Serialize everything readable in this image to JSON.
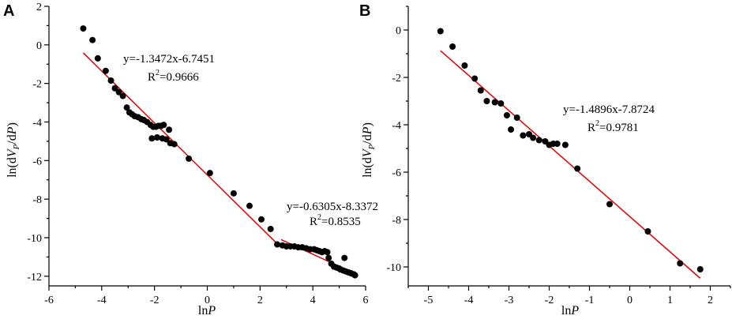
{
  "chart_data": [
    {
      "id": "A",
      "type": "scatter",
      "panel_label": "A",
      "xlabel_prefix": "ln",
      "xlabel_italic": "P",
      "ylabel": "ln(dV_P/dP)",
      "xlim": [
        -6,
        6
      ],
      "ylim": [
        -12.5,
        2
      ],
      "xticks": [
        -6,
        -4,
        -2,
        0,
        2,
        4,
        6
      ],
      "yticks": [
        2,
        0,
        -2,
        -4,
        -6,
        -8,
        -10,
        -12
      ],
      "points": [
        [
          -4.7,
          0.85
        ],
        [
          -4.35,
          0.25
        ],
        [
          -4.15,
          -0.7
        ],
        [
          -3.85,
          -1.35
        ],
        [
          -3.65,
          -1.85
        ],
        [
          -3.5,
          -2.25
        ],
        [
          -3.35,
          -2.45
        ],
        [
          -3.2,
          -2.65
        ],
        [
          -3.05,
          -3.25
        ],
        [
          -2.95,
          -3.5
        ],
        [
          -2.85,
          -3.6
        ],
        [
          -2.75,
          -3.7
        ],
        [
          -2.62,
          -3.75
        ],
        [
          -2.5,
          -3.85
        ],
        [
          -2.4,
          -3.9
        ],
        [
          -2.28,
          -4.0
        ],
        [
          -2.15,
          -4.15
        ],
        [
          -2.05,
          -4.25
        ],
        [
          -1.95,
          -4.25
        ],
        [
          -1.85,
          -4.2
        ],
        [
          -1.75,
          -4.2
        ],
        [
          -1.65,
          -4.15
        ],
        [
          -2.1,
          -4.85
        ],
        [
          -1.9,
          -4.8
        ],
        [
          -1.7,
          -4.85
        ],
        [
          -1.55,
          -4.9
        ],
        [
          -1.45,
          -4.4
        ],
        [
          -1.4,
          -5.1
        ],
        [
          -1.25,
          -5.15
        ],
        [
          -0.7,
          -5.9
        ],
        [
          0.1,
          -6.65
        ],
        [
          1.0,
          -7.7
        ],
        [
          1.6,
          -8.35
        ],
        [
          2.05,
          -9.05
        ],
        [
          2.4,
          -9.55
        ],
        [
          2.65,
          -10.35
        ],
        [
          2.85,
          -10.4
        ],
        [
          3.0,
          -10.45
        ],
        [
          3.15,
          -10.45
        ],
        [
          3.3,
          -10.45
        ],
        [
          3.45,
          -10.5
        ],
        [
          3.6,
          -10.5
        ],
        [
          3.75,
          -10.55
        ],
        [
          3.9,
          -10.6
        ],
        [
          4.05,
          -10.6
        ],
        [
          4.15,
          -10.65
        ],
        [
          4.25,
          -10.7
        ],
        [
          4.35,
          -10.75
        ],
        [
          4.45,
          -10.7
        ],
        [
          4.55,
          -10.75
        ],
        [
          4.6,
          -11.05
        ],
        [
          4.7,
          -11.35
        ],
        [
          4.8,
          -11.5
        ],
        [
          4.9,
          -11.55
        ],
        [
          5.0,
          -11.6
        ],
        [
          5.05,
          -11.65
        ],
        [
          5.15,
          -11.7
        ],
        [
          5.2,
          -11.05
        ],
        [
          5.25,
          -11.75
        ],
        [
          5.35,
          -11.8
        ],
        [
          5.45,
          -11.85
        ],
        [
          5.55,
          -11.9
        ],
        [
          5.6,
          -11.95
        ]
      ],
      "fits": [
        {
          "slope": -1.3472,
          "intercept": -6.7451,
          "x_range": [
            -4.7,
            2.8
          ],
          "equation": "y=-1.3472x-6.7451",
          "r2_prefix": "R",
          "r2_sup": "2",
          "r2_value": "=0.9666"
        },
        {
          "slope": -0.6305,
          "intercept": -8.3372,
          "x_range": [
            2.8,
            5.6
          ],
          "equation": "y=-0.6305x-8.3372",
          "r2_prefix": "R",
          "r2_sup": "2",
          "r2_value": "=0.8535"
        }
      ]
    },
    {
      "id": "B",
      "type": "scatter",
      "panel_label": "B",
      "xlabel_prefix": "ln",
      "xlabel_italic": "P",
      "ylabel": "ln(dV_P/dP)",
      "xlim": [
        -5.5,
        2.5
      ],
      "ylim": [
        -10.8,
        1
      ],
      "xticks": [
        -5,
        -4,
        -3,
        -2,
        -1,
        0,
        1,
        2
      ],
      "yticks": [
        0,
        -2,
        -4,
        -6,
        -8,
        -10
      ],
      "points": [
        [
          -4.7,
          -0.05
        ],
        [
          -4.4,
          -0.7
        ],
        [
          -4.1,
          -1.5
        ],
        [
          -3.85,
          -2.05
        ],
        [
          -3.7,
          -2.55
        ],
        [
          -3.55,
          -3.0
        ],
        [
          -3.35,
          -3.05
        ],
        [
          -3.2,
          -3.1
        ],
        [
          -3.05,
          -3.6
        ],
        [
          -2.95,
          -4.2
        ],
        [
          -2.8,
          -3.7
        ],
        [
          -2.65,
          -4.45
        ],
        [
          -2.5,
          -4.4
        ],
        [
          -2.4,
          -4.55
        ],
        [
          -2.25,
          -4.65
        ],
        [
          -2.1,
          -4.7
        ],
        [
          -2.0,
          -4.85
        ],
        [
          -1.9,
          -4.8
        ],
        [
          -1.8,
          -4.8
        ],
        [
          -1.6,
          -4.85
        ],
        [
          -1.3,
          -5.85
        ],
        [
          -0.5,
          -7.35
        ],
        [
          0.45,
          -8.5
        ],
        [
          1.25,
          -9.85
        ],
        [
          1.75,
          -10.1
        ]
      ],
      "fits": [
        {
          "slope": -1.4896,
          "intercept": -7.8724,
          "x_range": [
            -4.7,
            1.75
          ],
          "equation": "y=-1.4896x-7.8724",
          "r2_prefix": "R",
          "r2_sup": "2",
          "r2_value": "=0.9781"
        }
      ]
    }
  ]
}
